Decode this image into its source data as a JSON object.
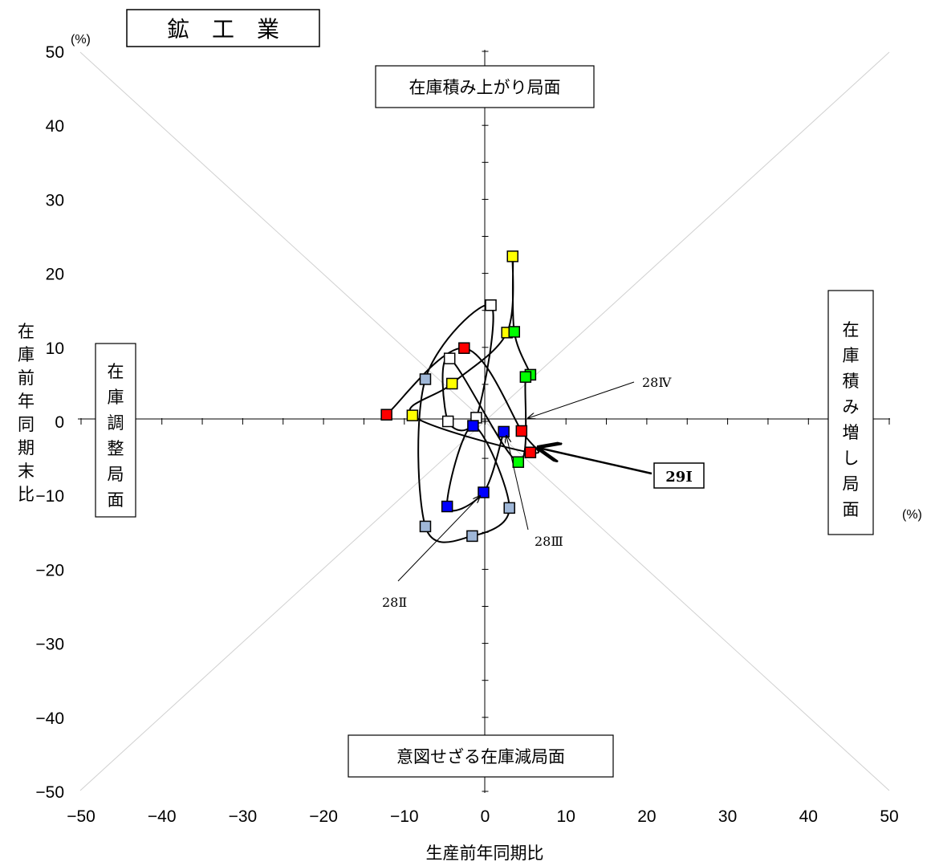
{
  "title": "鉱　工　業",
  "chart_data": {
    "type": "scatter",
    "title": "鉱　工　業",
    "xlabel": "生産前年同期比",
    "ylabel": "在庫前年同期末比",
    "x_unit": "(%)",
    "y_unit": "(%)",
    "xlim": [
      -50,
      50
    ],
    "ylim": [
      -50,
      50
    ],
    "x_ticks": [
      "−50",
      "−40",
      "−30",
      "−20",
      "−10",
      "0",
      "10",
      "20",
      "30",
      "40",
      "50"
    ],
    "y_ticks": [
      "50",
      "40",
      "30",
      "20",
      "10",
      "0",
      "−10",
      "−20",
      "−30",
      "−40",
      "−50"
    ],
    "grid": false,
    "diagonal_guides": true,
    "quadrant_labels": {
      "top": "在庫積み上がり局面",
      "bottom": "意図せざる在庫減局面",
      "left": "在庫調整局面",
      "right": "在庫積み増し局面"
    },
    "points": [
      {
        "x": -12.2,
        "y": 0.9,
        "color": "#ff0000"
      },
      {
        "x": -2.6,
        "y": 9.9,
        "color": "#ff0000"
      },
      {
        "x": 4.5,
        "y": -1.3,
        "color": "#ff0000"
      },
      {
        "x": 5.6,
        "y": -4.2,
        "color": "#ff0000"
      },
      {
        "x": -9.0,
        "y": 0.8,
        "color": "#ffff00"
      },
      {
        "x": -4.1,
        "y": 5.1,
        "color": "#ffff00"
      },
      {
        "x": 2.7,
        "y": 12.0,
        "color": "#ffff00"
      },
      {
        "x": 3.4,
        "y": 22.3,
        "color": "#ffff00"
      },
      {
        "x": 3.6,
        "y": 12.1,
        "color": "#00ff00"
      },
      {
        "x": 5.6,
        "y": 6.3,
        "color": "#00ff00"
      },
      {
        "x": 5.0,
        "y": 6.0,
        "color": "#00ff00"
      },
      {
        "x": 4.1,
        "y": -5.5,
        "color": "#00ff00"
      },
      {
        "x": -4.4,
        "y": 8.5,
        "color": "#ffffff"
      },
      {
        "x": -4.6,
        "y": 0.0,
        "color": "#ffffff"
      },
      {
        "x": -1.1,
        "y": 0.5,
        "color": "#ffffff"
      },
      {
        "x": 0.7,
        "y": 15.7,
        "color": "#ffffff"
      },
      {
        "x": -7.4,
        "y": 5.7,
        "color": "#9fb7d8"
      },
      {
        "x": -7.4,
        "y": -14.2,
        "color": "#9fb7d8"
      },
      {
        "x": -1.6,
        "y": -15.5,
        "color": "#9fb7d8"
      },
      {
        "x": 3.0,
        "y": -11.7,
        "color": "#9fb7d8"
      },
      {
        "x": -1.5,
        "y": -0.6,
        "color": "#0000ff"
      },
      {
        "x": -4.7,
        "y": -11.5,
        "color": "#0000ff"
      },
      {
        "x": -0.2,
        "y": -9.6,
        "color": "#0000ff"
      },
      {
        "x": 2.3,
        "y": -1.4,
        "color": "#0000ff"
      }
    ],
    "path_order": [
      0,
      1,
      2,
      3,
      4,
      5,
      6,
      7,
      8,
      9,
      10,
      11,
      12,
      13,
      14,
      15,
      16,
      17,
      18,
      19,
      20,
      21,
      22,
      23
    ],
    "annotations": [
      {
        "text": "28Ⅳ",
        "x": 20.5,
        "y": 4.9
      },
      {
        "text": "28Ⅲ",
        "x": 8.0,
        "y": -16.6
      },
      {
        "text": "28Ⅱ",
        "x": -10.8,
        "y": -24.5
      },
      {
        "text": "29Ⅰ",
        "x": 23.0,
        "y": -8.0
      }
    ]
  }
}
